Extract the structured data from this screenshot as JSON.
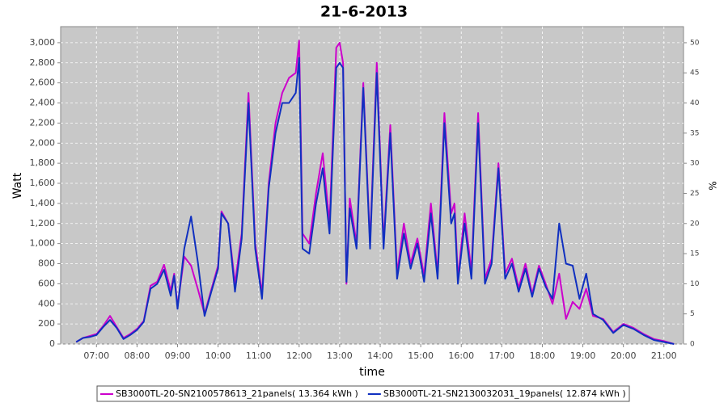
{
  "chart_data": {
    "type": "line",
    "title": "21-6-2013",
    "x_label": "time",
    "y_label": "Watt",
    "y2_label": "%",
    "x": [
      390,
      400,
      410,
      420,
      430,
      440,
      450,
      460,
      470,
      480,
      490,
      500,
      510,
      520,
      530,
      535,
      540,
      550,
      560,
      570,
      580,
      590,
      600,
      605,
      615,
      625,
      635,
      645,
      655,
      665,
      675,
      685,
      695,
      705,
      715,
      720,
      725,
      735,
      745,
      755,
      765,
      775,
      780,
      785,
      790,
      795,
      805,
      815,
      825,
      835,
      845,
      855,
      865,
      875,
      885,
      895,
      905,
      915,
      925,
      935,
      945,
      950,
      955,
      965,
      975,
      985,
      995,
      1005,
      1015,
      1025,
      1035,
      1045,
      1055,
      1065,
      1075,
      1085,
      1095,
      1105,
      1115,
      1125,
      1135,
      1145,
      1155,
      1170,
      1185,
      1200,
      1215,
      1230,
      1245,
      1260,
      1275
    ],
    "series": [
      {
        "name": "SB3000TL-20-SN2100578613_21panels( 13.364 kWh )",
        "color": "#cc00cc",
        "values": [
          20,
          60,
          80,
          100,
          180,
          280,
          170,
          60,
          100,
          150,
          230,
          580,
          620,
          790,
          530,
          700,
          380,
          870,
          780,
          550,
          300,
          540,
          780,
          1320,
          1200,
          600,
          1100,
          2500,
          1000,
          500,
          1600,
          2200,
          2500,
          2650,
          2700,
          3020,
          1100,
          1000,
          1500,
          1900,
          1200,
          2950,
          3000,
          2800,
          600,
          1450,
          1000,
          2600,
          1000,
          2800,
          1000,
          2180,
          700,
          1200,
          800,
          1050,
          680,
          1400,
          700,
          2300,
          1300,
          1400,
          650,
          1300,
          720,
          2300,
          650,
          850,
          1800,
          700,
          850,
          560,
          800,
          500,
          780,
          600,
          400,
          700,
          250,
          420,
          350,
          550,
          280,
          250,
          120,
          200,
          160,
          100,
          50,
          30,
          0
        ]
      },
      {
        "name": "SB3000TL-21-SN2130032031_19panels( 12.874 kWh )",
        "color": "#1030c0",
        "values": [
          20,
          60,
          70,
          90,
          170,
          240,
          160,
          50,
          90,
          140,
          220,
          550,
          600,
          740,
          480,
          680,
          350,
          950,
          1270,
          820,
          280,
          520,
          750,
          1300,
          1200,
          520,
          1050,
          2400,
          950,
          450,
          1550,
          2100,
          2400,
          2400,
          2500,
          2850,
          950,
          900,
          1400,
          1750,
          1100,
          2750,
          2800,
          2750,
          620,
          1350,
          950,
          2550,
          950,
          2700,
          950,
          2100,
          650,
          1100,
          750,
          1000,
          620,
          1300,
          650,
          2200,
          1200,
          1300,
          600,
          1200,
          650,
          2200,
          600,
          800,
          1750,
          650,
          800,
          520,
          750,
          470,
          750,
          570,
          450,
          1200,
          800,
          780,
          450,
          700,
          300,
          240,
          110,
          190,
          150,
          90,
          40,
          20,
          0
        ]
      }
    ],
    "xlim": [
      367,
      1289
    ],
    "xticks": [
      {
        "value": 420,
        "label": "07:00"
      },
      {
        "value": 480,
        "label": "08:00"
      },
      {
        "value": 540,
        "label": "09:00"
      },
      {
        "value": 600,
        "label": "10:00"
      },
      {
        "value": 660,
        "label": "11:00"
      },
      {
        "value": 720,
        "label": "12:00"
      },
      {
        "value": 780,
        "label": "13:00"
      },
      {
        "value": 840,
        "label": "14:00"
      },
      {
        "value": 900,
        "label": "15:00"
      },
      {
        "value": 960,
        "label": "16:00"
      },
      {
        "value": 1020,
        "label": "17:00"
      },
      {
        "value": 1080,
        "label": "18:00"
      },
      {
        "value": 1140,
        "label": "19:00"
      },
      {
        "value": 1200,
        "label": "20:00"
      },
      {
        "value": 1260,
        "label": "21:00"
      }
    ],
    "ylim": [
      0,
      3160
    ],
    "yticks": [
      0,
      200,
      400,
      600,
      800,
      {
        "value": 1000,
        "label": "1,000"
      },
      {
        "value": 1200,
        "label": "1,200"
      },
      {
        "value": 1400,
        "label": "1,400"
      },
      {
        "value": 1600,
        "label": "1,600"
      },
      {
        "value": 1800,
        "label": "1,800"
      },
      {
        "value": 2000,
        "label": "2,000"
      },
      {
        "value": 2200,
        "label": "2,200"
      },
      {
        "value": 2400,
        "label": "2,400"
      },
      {
        "value": 2600,
        "label": "2,600"
      },
      {
        "value": 2800,
        "label": "2,800"
      },
      {
        "value": 3000,
        "label": "3,000"
      }
    ],
    "y2lim": [
      0,
      52.67
    ],
    "y2ticks": [
      0,
      5,
      10,
      15,
      20,
      25,
      30,
      35,
      40,
      45,
      50
    ],
    "grid": true,
    "legend": "bottom"
  }
}
